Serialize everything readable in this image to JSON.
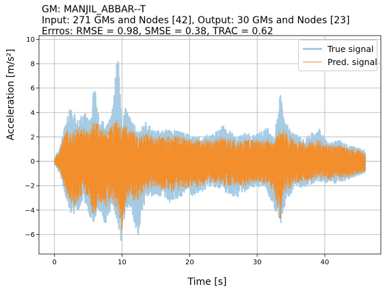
{
  "title_lines": [
    "GM: MANJIL_ABBAR--T",
    "Input: 271 GMs and Nodes [42], Output: 30 GMs and Nodes [23]",
    "Errros: RMSE = 0.98, SMSE = 0.38, TRAC = 0.62"
  ],
  "chart_data": {
    "type": "line",
    "title": "GM: MANJIL_ABBAR--T\nInput: 271 GMs and Nodes [42], Output: 30 GMs and Nodes [23]\nErrros: RMSE = 0.98, SMSE = 0.38, TRAC = 0.62",
    "xlabel": "Time [s]",
    "ylabel": "Acceleration [m/s²]",
    "xlim": [
      -2.3,
      48.3
    ],
    "ylim": [
      -7.6,
      10.3
    ],
    "xticks": [
      0,
      10,
      20,
      30,
      40
    ],
    "xtick_labels": [
      "0",
      "10",
      "20",
      "30",
      "40"
    ],
    "yticks": [
      -6,
      -4,
      -2,
      0,
      2,
      4,
      6,
      8,
      10
    ],
    "ytick_labels": [
      "−6",
      "−4",
      "−2",
      "0",
      "2",
      "4",
      "6",
      "8",
      "10"
    ],
    "grid": true,
    "legend_position": "top-right",
    "duration_s": 46,
    "series": [
      {
        "name": "True signal",
        "color": "#a6cbe3",
        "envelope": [
          {
            "t": 0.0,
            "max": 0.2,
            "min": -0.2
          },
          {
            "t": 0.8,
            "max": 1.2,
            "min": -1.0
          },
          {
            "t": 1.5,
            "max": 3.0,
            "min": -2.5
          },
          {
            "t": 2.0,
            "max": 4.2,
            "min": -3.6
          },
          {
            "t": 2.6,
            "max": 4.3,
            "min": -4.6
          },
          {
            "t": 3.5,
            "max": 3.5,
            "min": -4.0
          },
          {
            "t": 4.4,
            "max": 4.0,
            "min": -3.2
          },
          {
            "t": 5.2,
            "max": 3.5,
            "min": -4.5
          },
          {
            "t": 5.8,
            "max": 6.5,
            "min": -5.0
          },
          {
            "t": 6.5,
            "max": 4.0,
            "min": -3.8
          },
          {
            "t": 7.6,
            "max": 2.8,
            "min": -5.4
          },
          {
            "t": 8.5,
            "max": 4.0,
            "min": -3.5
          },
          {
            "t": 9.4,
            "max": 9.3,
            "min": -5.0
          },
          {
            "t": 9.9,
            "max": 3.2,
            "min": -6.9
          },
          {
            "t": 10.5,
            "max": 4.5,
            "min": -4.0
          },
          {
            "t": 11.3,
            "max": 3.5,
            "min": -3.8
          },
          {
            "t": 12.4,
            "max": 2.5,
            "min": -6.3
          },
          {
            "t": 13.5,
            "max": 3.2,
            "min": -3.0
          },
          {
            "t": 15.0,
            "max": 2.5,
            "min": -2.7
          },
          {
            "t": 17.0,
            "max": 2.6,
            "min": -3.4
          },
          {
            "t": 19.0,
            "max": 2.4,
            "min": -2.8
          },
          {
            "t": 21.0,
            "max": 2.0,
            "min": -2.8
          },
          {
            "t": 23.0,
            "max": 2.2,
            "min": -2.0
          },
          {
            "t": 24.9,
            "max": 3.0,
            "min": -2.4
          },
          {
            "t": 27.0,
            "max": 2.0,
            "min": -3.0
          },
          {
            "t": 28.2,
            "max": 2.3,
            "min": -2.5
          },
          {
            "t": 30.0,
            "max": 2.3,
            "min": -2.0
          },
          {
            "t": 31.5,
            "max": 2.8,
            "min": -2.5
          },
          {
            "t": 32.5,
            "max": 1.8,
            "min": -4.0
          },
          {
            "t": 33.4,
            "max": 5.5,
            "min": -5.3
          },
          {
            "t": 34.2,
            "max": 3.2,
            "min": -3.5
          },
          {
            "t": 35.5,
            "max": 2.3,
            "min": -2.2
          },
          {
            "t": 37.0,
            "max": 1.8,
            "min": -2.2
          },
          {
            "t": 39.0,
            "max": 2.8,
            "min": -1.6
          },
          {
            "t": 40.5,
            "max": 1.5,
            "min": -1.8
          },
          {
            "t": 41.8,
            "max": 1.8,
            "min": -1.8
          },
          {
            "t": 43.5,
            "max": 1.3,
            "min": -1.5
          },
          {
            "t": 46.0,
            "max": 0.9,
            "min": -0.9
          }
        ]
      },
      {
        "name": "Pred. signal",
        "color": "#f28e2b",
        "envelope": [
          {
            "t": 0.0,
            "max": 0.2,
            "min": -0.2
          },
          {
            "t": 0.8,
            "max": 1.0,
            "min": -0.8
          },
          {
            "t": 1.5,
            "max": 2.2,
            "min": -2.0
          },
          {
            "t": 2.0,
            "max": 2.6,
            "min": -3.0
          },
          {
            "t": 2.6,
            "max": 2.5,
            "min": -3.8
          },
          {
            "t": 3.5,
            "max": 2.8,
            "min": -3.5
          },
          {
            "t": 4.4,
            "max": 2.8,
            "min": -2.5
          },
          {
            "t": 5.2,
            "max": 2.5,
            "min": -3.2
          },
          {
            "t": 5.8,
            "max": 3.5,
            "min": -4.8
          },
          {
            "t": 6.5,
            "max": 3.2,
            "min": -3.3
          },
          {
            "t": 7.6,
            "max": 2.5,
            "min": -4.0
          },
          {
            "t": 8.5,
            "max": 3.0,
            "min": -3.0
          },
          {
            "t": 9.4,
            "max": 3.5,
            "min": -4.5
          },
          {
            "t": 9.9,
            "max": 2.8,
            "min": -6.2
          },
          {
            "t": 10.5,
            "max": 3.0,
            "min": -3.5
          },
          {
            "t": 11.3,
            "max": 2.6,
            "min": -3.0
          },
          {
            "t": 12.4,
            "max": 2.0,
            "min": -3.5
          },
          {
            "t": 13.5,
            "max": 2.3,
            "min": -2.4
          },
          {
            "t": 15.0,
            "max": 2.0,
            "min": -2.2
          },
          {
            "t": 17.0,
            "max": 2.1,
            "min": -2.6
          },
          {
            "t": 19.0,
            "max": 2.0,
            "min": -2.2
          },
          {
            "t": 21.0,
            "max": 1.8,
            "min": -2.2
          },
          {
            "t": 23.0,
            "max": 1.8,
            "min": -1.7
          },
          {
            "t": 24.9,
            "max": 2.0,
            "min": -2.0
          },
          {
            "t": 27.0,
            "max": 1.7,
            "min": -2.0
          },
          {
            "t": 28.2,
            "max": 1.8,
            "min": -2.0
          },
          {
            "t": 30.0,
            "max": 1.8,
            "min": -1.7
          },
          {
            "t": 31.5,
            "max": 1.9,
            "min": -2.0
          },
          {
            "t": 32.5,
            "max": 1.5,
            "min": -2.5
          },
          {
            "t": 33.4,
            "max": 2.8,
            "min": -5.0
          },
          {
            "t": 34.2,
            "max": 2.5,
            "min": -2.8
          },
          {
            "t": 35.5,
            "max": 1.8,
            "min": -1.8
          },
          {
            "t": 37.0,
            "max": 1.5,
            "min": -1.8
          },
          {
            "t": 39.0,
            "max": 1.8,
            "min": -1.4
          },
          {
            "t": 40.5,
            "max": 1.3,
            "min": -1.5
          },
          {
            "t": 41.8,
            "max": 1.4,
            "min": -1.4
          },
          {
            "t": 43.5,
            "max": 1.1,
            "min": -1.3
          },
          {
            "t": 46.0,
            "max": 0.8,
            "min": -0.8
          }
        ]
      }
    ]
  }
}
